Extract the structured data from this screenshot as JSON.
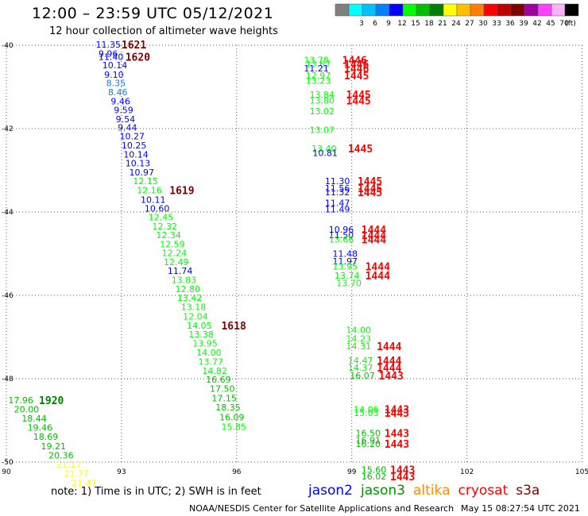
{
  "title": "12:00 – 23:59 UTC 05/12/2021",
  "subtitle": "12 hour collection of altimeter wave heights",
  "color_scale": {
    "unit": "(ft)",
    "bins": [
      {
        "label": "",
        "color": "#808080"
      },
      {
        "label": "3",
        "color": "#00ffff"
      },
      {
        "label": "6",
        "color": "#00c0ff"
      },
      {
        "label": "9",
        "color": "#0080ff"
      },
      {
        "label": "12",
        "color": "#0000ff"
      },
      {
        "label": "15",
        "color": "#00ff00"
      },
      {
        "label": "18",
        "color": "#00c000"
      },
      {
        "label": "21",
        "color": "#008000"
      },
      {
        "label": "24",
        "color": "#ffff00"
      },
      {
        "label": "27",
        "color": "#ffc000"
      },
      {
        "label": "30",
        "color": "#ff8000"
      },
      {
        "label": "33",
        "color": "#ff0000"
      },
      {
        "label": "36",
        "color": "#c00000"
      },
      {
        "label": "39",
        "color": "#800000"
      },
      {
        "label": "42",
        "color": "#a000a0"
      },
      {
        "label": "45",
        "color": "#ff40ff"
      },
      {
        "label": "70",
        "color": "#ffb0ff"
      },
      {
        "label": "",
        "color": "#000000"
      }
    ]
  },
  "map": {
    "lon_ticks": [
      "90",
      "93",
      "96",
      "99",
      "102",
      "105"
    ],
    "lat_ticks": [
      "-40",
      "-42",
      "-44",
      "-46",
      "-48",
      "-50"
    ]
  },
  "tracks": [
    {
      "name": "track-1",
      "obs": [
        {
          "v": "11.35",
          "lon": 92.33,
          "lat": -39.98,
          "c": "#0000ff"
        },
        {
          "v": "9.96",
          "lon": 92.4,
          "lat": -40.2,
          "c": "#0000ff"
        },
        {
          "v": "11.40",
          "lon": 92.4,
          "lat": -40.28,
          "c": "#0000ff"
        },
        {
          "v": "10.14",
          "lon": 92.5,
          "lat": -40.48,
          "c": "#0000ff"
        },
        {
          "v": "9.10",
          "lon": 92.55,
          "lat": -40.7,
          "c": "#0000ff"
        },
        {
          "v": "8.35",
          "lon": 92.6,
          "lat": -40.9,
          "c": "#0080ff"
        },
        {
          "v": "8.46",
          "lon": 92.65,
          "lat": -41.12,
          "c": "#0080ff"
        },
        {
          "v": "9.46",
          "lon": 92.72,
          "lat": -41.34,
          "c": "#0000ff"
        },
        {
          "v": "9.59",
          "lon": 92.8,
          "lat": -41.55,
          "c": "#0000ff"
        },
        {
          "v": "9.54",
          "lon": 92.85,
          "lat": -41.77,
          "c": "#0000ff"
        },
        {
          "v": "9.44",
          "lon": 92.9,
          "lat": -41.97,
          "c": "#0000ff"
        },
        {
          "v": "10.27",
          "lon": 92.95,
          "lat": -42.18,
          "c": "#0000ff"
        },
        {
          "v": "10.25",
          "lon": 93.0,
          "lat": -42.4,
          "c": "#0000ff"
        },
        {
          "v": "10.14",
          "lon": 93.05,
          "lat": -42.62,
          "c": "#0000ff"
        },
        {
          "v": "10.13",
          "lon": 93.1,
          "lat": -42.83,
          "c": "#0000ff"
        },
        {
          "v": "10.97",
          "lon": 93.2,
          "lat": -43.05,
          "c": "#0000ff"
        },
        {
          "v": "12.15",
          "lon": 93.3,
          "lat": -43.26,
          "c": "#00ff00"
        },
        {
          "v": "12.16",
          "lon": 93.4,
          "lat": -43.48,
          "c": "#00ff00"
        },
        {
          "v": "10.11",
          "lon": 93.5,
          "lat": -43.7,
          "c": "#0000ff"
        },
        {
          "v": "10.60",
          "lon": 93.6,
          "lat": -43.91,
          "c": "#0000ff"
        },
        {
          "v": "12.45",
          "lon": 93.7,
          "lat": -44.12,
          "c": "#00ff00"
        },
        {
          "v": "12.32",
          "lon": 93.8,
          "lat": -44.34,
          "c": "#00ff00"
        },
        {
          "v": "12.34",
          "lon": 93.9,
          "lat": -44.55,
          "c": "#00ff00"
        },
        {
          "v": "12.59",
          "lon": 94.0,
          "lat": -44.77,
          "c": "#00ff00"
        },
        {
          "v": "12.24",
          "lon": 94.05,
          "lat": -44.98,
          "c": "#00ff00"
        },
        {
          "v": "12.49",
          "lon": 94.1,
          "lat": -45.2,
          "c": "#00ff00"
        },
        {
          "v": "11.74",
          "lon": 94.2,
          "lat": -45.41,
          "c": "#0000ff"
        },
        {
          "v": "13.83",
          "lon": 94.3,
          "lat": -45.63,
          "c": "#00ff00"
        },
        {
          "v": "12.80",
          "lon": 94.4,
          "lat": -45.85,
          "c": "#00ff00"
        },
        {
          "v": "13.42",
          "lon": 94.45,
          "lat": -46.06,
          "c": "#00ff00"
        },
        {
          "v": "13.18",
          "lon": 94.55,
          "lat": -46.28,
          "c": "#00ff00"
        },
        {
          "v": "12.04",
          "lon": 94.6,
          "lat": -46.5,
          "c": "#00ff00"
        },
        {
          "v": "14.05",
          "lon": 94.7,
          "lat": -46.72,
          "c": "#00ff00"
        },
        {
          "v": "13.38",
          "lon": 94.75,
          "lat": -46.93,
          "c": "#00ff00"
        },
        {
          "v": "13.95",
          "lon": 94.85,
          "lat": -47.15,
          "c": "#00ff00"
        },
        {
          "v": "14.00",
          "lon": 94.95,
          "lat": -47.37,
          "c": "#00ff00"
        },
        {
          "v": "13.77",
          "lon": 95.0,
          "lat": -47.59,
          "c": "#00ff00"
        },
        {
          "v": "14.82",
          "lon": 95.1,
          "lat": -47.81,
          "c": "#00ff00"
        },
        {
          "v": "16.69",
          "lon": 95.2,
          "lat": -48.02,
          "c": "#00c000"
        },
        {
          "v": "17.50",
          "lon": 95.3,
          "lat": -48.24,
          "c": "#00c000"
        },
        {
          "v": "17.15",
          "lon": 95.35,
          "lat": -48.47,
          "c": "#00c000"
        },
        {
          "v": "18.35",
          "lon": 95.45,
          "lat": -48.69,
          "c": "#00c000"
        },
        {
          "v": "16.09",
          "lon": 95.55,
          "lat": -48.92,
          "c": "#00c000"
        },
        {
          "v": "15.85",
          "lon": 95.6,
          "lat": -49.15,
          "c": "#00ff00"
        }
      ]
    },
    {
      "name": "track-2",
      "obs": [
        {
          "v": "17.96",
          "lon": 90.05,
          "lat": -48.51,
          "c": "#00c000"
        },
        {
          "v": "20.00",
          "lon": 90.2,
          "lat": -48.73,
          "c": "#00c000"
        },
        {
          "v": "18.44",
          "lon": 90.4,
          "lat": -48.95,
          "c": "#00c000"
        },
        {
          "v": "19.46",
          "lon": 90.55,
          "lat": -49.17,
          "c": "#00c000"
        },
        {
          "v": "18.69",
          "lon": 90.7,
          "lat": -49.39,
          "c": "#00c000"
        },
        {
          "v": "19.21",
          "lon": 90.9,
          "lat": -49.62,
          "c": "#00c000"
        },
        {
          "v": "20.36",
          "lon": 91.1,
          "lat": -49.84,
          "c": "#00c000"
        },
        {
          "v": "21.17",
          "lon": 91.3,
          "lat": -50.06,
          "c": "#ffff00"
        },
        {
          "v": "21.77",
          "lon": 91.5,
          "lat": -50.28,
          "c": "#ffff00"
        },
        {
          "v": "21.47",
          "lon": 91.7,
          "lat": -50.5,
          "c": "#ffff00"
        }
      ]
    },
    {
      "name": "track-3",
      "obs": [
        {
          "v": "13.78",
          "lon": 97.75,
          "lat": -40.35,
          "c": "#00ff00"
        },
        {
          "v": "13.67",
          "lon": 97.8,
          "lat": -40.45,
          "c": "#00ff00"
        },
        {
          "v": "11.21",
          "lon": 97.75,
          "lat": -40.55,
          "c": "#0000ff"
        },
        {
          "v": "12.97",
          "lon": 97.8,
          "lat": -40.72,
          "c": "#00ff00"
        },
        {
          "v": "13.23",
          "lon": 97.8,
          "lat": -40.85,
          "c": "#00ff00"
        },
        {
          "v": "13.84",
          "lon": 97.9,
          "lat": -41.18,
          "c": "#00ff00"
        },
        {
          "v": "13.80",
          "lon": 97.9,
          "lat": -41.32,
          "c": "#00ff00"
        },
        {
          "v": "13.02",
          "lon": 97.9,
          "lat": -41.58,
          "c": "#00ff00"
        },
        {
          "v": "13.07",
          "lon": 97.9,
          "lat": -42.03,
          "c": "#00ff00"
        },
        {
          "v": "13.40",
          "lon": 97.95,
          "lat": -42.48,
          "c": "#00ff00"
        },
        {
          "v": "10.81",
          "lon": 97.98,
          "lat": -42.58,
          "c": "#0000ff"
        },
        {
          "v": "11.30",
          "lon": 98.3,
          "lat": -43.26,
          "c": "#0000ff"
        },
        {
          "v": "11.56",
          "lon": 98.3,
          "lat": -43.43,
          "c": "#0000ff"
        },
        {
          "v": "11.32",
          "lon": 98.3,
          "lat": -43.52,
          "c": "#0000ff"
        },
        {
          "v": "11.47",
          "lon": 98.3,
          "lat": -43.78,
          "c": "#0000ff"
        },
        {
          "v": "11.49",
          "lon": 98.3,
          "lat": -43.93,
          "c": "#0000ff"
        },
        {
          "v": "10.96",
          "lon": 98.4,
          "lat": -44.42,
          "c": "#0000ff"
        },
        {
          "v": "11.50",
          "lon": 98.4,
          "lat": -44.55,
          "c": "#0000ff"
        },
        {
          "v": "13.66",
          "lon": 98.4,
          "lat": -44.66,
          "c": "#00ff00"
        },
        {
          "v": "11.48",
          "lon": 98.5,
          "lat": -45.0,
          "c": "#0000ff"
        },
        {
          "v": "11.97",
          "lon": 98.5,
          "lat": -45.18,
          "c": "#0000ff"
        },
        {
          "v": "13.95",
          "lon": 98.5,
          "lat": -45.3,
          "c": "#00ff00"
        },
        {
          "v": "13.74",
          "lon": 98.55,
          "lat": -45.52,
          "c": "#00ff00"
        },
        {
          "v": "13.70",
          "lon": 98.6,
          "lat": -45.7,
          "c": "#00ff00"
        },
        {
          "v": "14.00",
          "lon": 98.85,
          "lat": -46.83,
          "c": "#00ff00"
        },
        {
          "v": "14.23",
          "lon": 98.85,
          "lat": -47.04,
          "c": "#00ff00"
        },
        {
          "v": "14.31",
          "lon": 98.85,
          "lat": -47.22,
          "c": "#00ff00"
        },
        {
          "v": "14.47",
          "lon": 98.9,
          "lat": -47.56,
          "c": "#00ff00"
        },
        {
          "v": "14.37",
          "lon": 98.9,
          "lat": -47.73,
          "c": "#00ff00"
        },
        {
          "v": "16.07",
          "lon": 98.95,
          "lat": -47.92,
          "c": "#00c000"
        },
        {
          "v": "14.06",
          "lon": 99.05,
          "lat": -48.73,
          "c": "#00ff00"
        },
        {
          "v": "15.03",
          "lon": 99.05,
          "lat": -48.82,
          "c": "#00ff00"
        },
        {
          "v": "16.50",
          "lon": 99.1,
          "lat": -49.3,
          "c": "#00c000"
        },
        {
          "v": "16.91",
          "lon": 99.1,
          "lat": -49.48,
          "c": "#00c000"
        },
        {
          "v": "16.20",
          "lon": 99.1,
          "lat": -49.56,
          "c": "#00c000"
        },
        {
          "v": "15.60",
          "lon": 99.25,
          "lat": -50.18,
          "c": "#00c000"
        },
        {
          "v": "16.02",
          "lon": 99.25,
          "lat": -50.34,
          "c": "#00c000"
        }
      ]
    }
  ],
  "time_labels": [
    {
      "t": "1621",
      "lon": 93.0,
      "lat": -39.98,
      "c": "#800000"
    },
    {
      "t": "1620",
      "lon": 93.1,
      "lat": -40.28,
      "c": "#800000"
    },
    {
      "t": "1619",
      "lon": 94.25,
      "lat": -43.48,
      "c": "#800000"
    },
    {
      "t": "1618",
      "lon": 95.6,
      "lat": -46.72,
      "c": "#800000"
    },
    {
      "t": "1920",
      "lon": 90.85,
      "lat": -48.51,
      "c": "#008000"
    },
    {
      "t": "1446",
      "lon": 98.75,
      "lat": -40.35,
      "c": "#ff0000"
    },
    {
      "t": "1446",
      "lon": 98.8,
      "lat": -40.45,
      "c": "#ff0000"
    },
    {
      "t": "1446",
      "lon": 98.8,
      "lat": -40.55,
      "c": "#ff0000"
    },
    {
      "t": "1445",
      "lon": 98.8,
      "lat": -40.72,
      "c": "#ff0000"
    },
    {
      "t": "1445",
      "lon": 98.85,
      "lat": -41.18,
      "c": "#ff0000"
    },
    {
      "t": "1445",
      "lon": 98.85,
      "lat": -41.32,
      "c": "#ff0000"
    },
    {
      "t": "1445",
      "lon": 98.9,
      "lat": -42.48,
      "c": "#ff0000"
    },
    {
      "t": "1445",
      "lon": 99.15,
      "lat": -43.26,
      "c": "#ff0000"
    },
    {
      "t": "1445",
      "lon": 99.15,
      "lat": -43.43,
      "c": "#ff0000"
    },
    {
      "t": "1445",
      "lon": 99.15,
      "lat": -43.52,
      "c": "#ff0000"
    },
    {
      "t": "1444",
      "lon": 99.25,
      "lat": -44.42,
      "c": "#ff0000"
    },
    {
      "t": "1444",
      "lon": 99.25,
      "lat": -44.55,
      "c": "#ff0000"
    },
    {
      "t": "1444",
      "lon": 99.25,
      "lat": -44.66,
      "c": "#ff0000"
    },
    {
      "t": "1444",
      "lon": 99.35,
      "lat": -45.3,
      "c": "#ff0000"
    },
    {
      "t": "1444",
      "lon": 99.35,
      "lat": -45.52,
      "c": "#ff0000"
    },
    {
      "t": "1444",
      "lon": 99.65,
      "lat": -47.22,
      "c": "#ff0000"
    },
    {
      "t": "1444",
      "lon": 99.65,
      "lat": -47.56,
      "c": "#ff0000"
    },
    {
      "t": "1444",
      "lon": 99.65,
      "lat": -47.73,
      "c": "#ff0000"
    },
    {
      "t": "1443",
      "lon": 99.7,
      "lat": -47.92,
      "c": "#ff0000"
    },
    {
      "t": "1443",
      "lon": 99.85,
      "lat": -48.73,
      "c": "#ff0000"
    },
    {
      "t": "1443",
      "lon": 99.85,
      "lat": -48.82,
      "c": "#ff0000"
    },
    {
      "t": "1443",
      "lon": 99.85,
      "lat": -49.3,
      "c": "#ff0000"
    },
    {
      "t": "1443",
      "lon": 99.85,
      "lat": -49.56,
      "c": "#ff0000"
    },
    {
      "t": "1443",
      "lon": 100.0,
      "lat": -50.18,
      "c": "#ff0000"
    },
    {
      "t": "1443",
      "lon": 100.0,
      "lat": -50.34,
      "c": "#ff0000"
    }
  ],
  "note": "note: 1) Time is in UTC; 2) SWH is in feet",
  "satellites": [
    {
      "name": "jason2",
      "color": "#0000ff"
    },
    {
      "name": "jason3",
      "color": "#009000"
    },
    {
      "name": "altika",
      "color": "#ff8c00"
    },
    {
      "name": "cryosat",
      "color": "#ff0000"
    },
    {
      "name": "s3a",
      "color": "#800000"
    }
  ],
  "credit": "NOAA/NESDIS Center for Satellite Applications and Research",
  "timestamp": "May 15 08:27:54 UTC 2021"
}
